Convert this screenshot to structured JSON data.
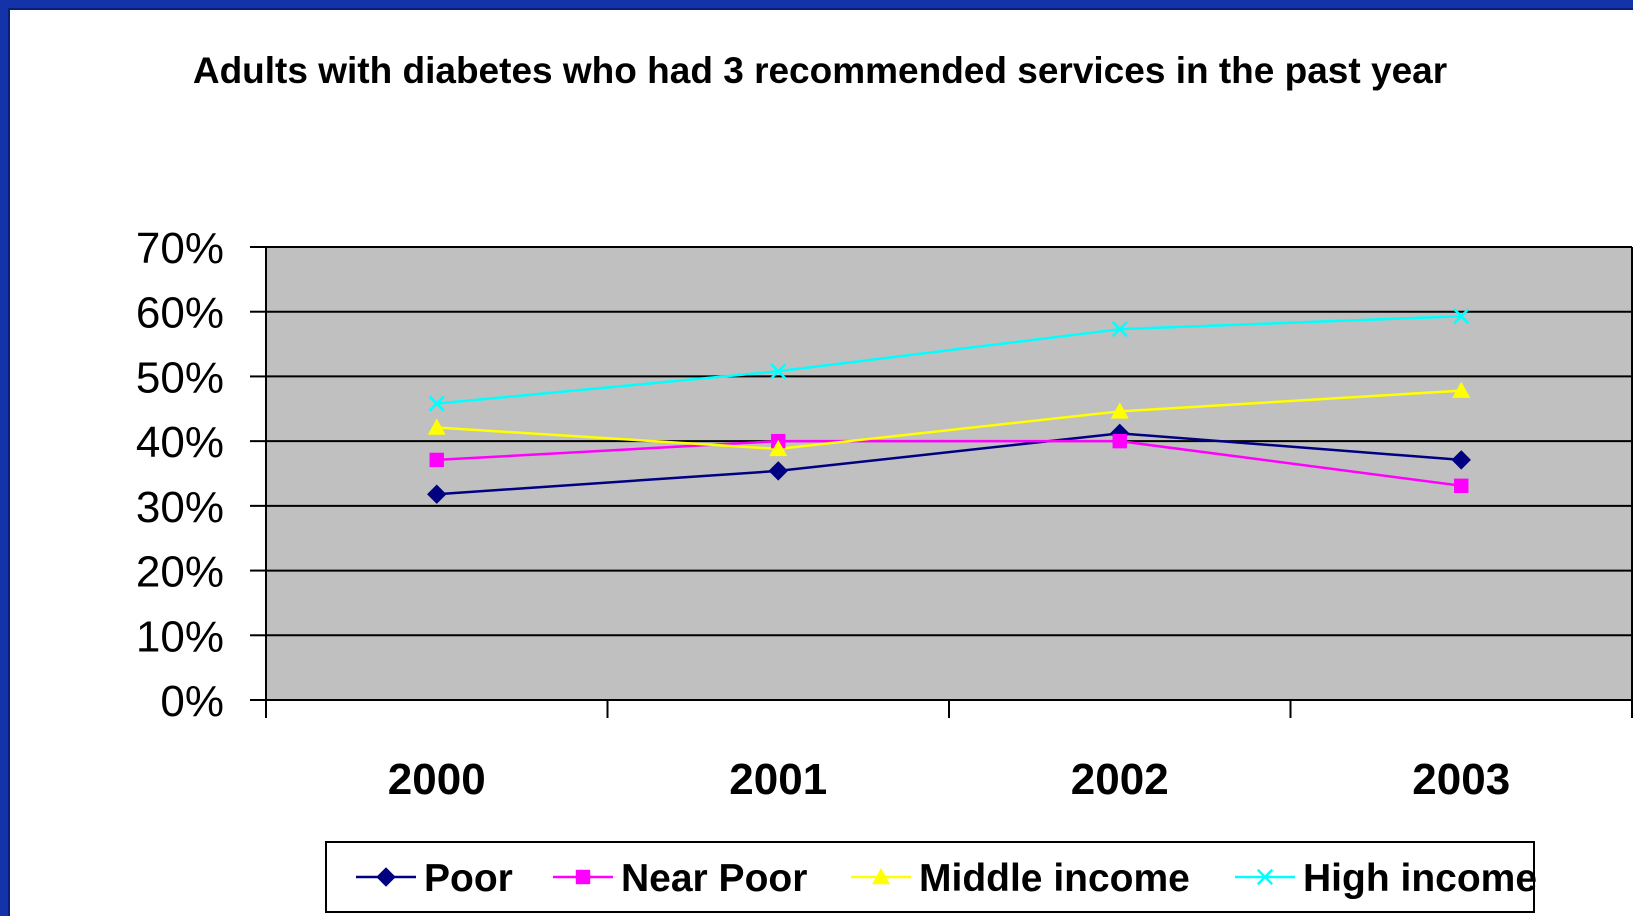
{
  "chart_data": {
    "type": "line",
    "title": "Adults with diabetes who had 3 recommended services in the past year",
    "categories": [
      "2000",
      "2001",
      "2002",
      "2003"
    ],
    "y_ticks": [
      "0%",
      "10%",
      "20%",
      "30%",
      "40%",
      "50%",
      "60%",
      "70%"
    ],
    "ylim": [
      0,
      70
    ],
    "grid": true,
    "legend_position": "bottom",
    "plot_background": "#c0c0c0",
    "series": [
      {
        "name": "Poor",
        "values": [
          31.8,
          35.4,
          41.2,
          37.1
        ],
        "color": "#000080",
        "marker": "diamond"
      },
      {
        "name": "Near Poor",
        "values": [
          37.1,
          40.0,
          40.0,
          33.1
        ],
        "color": "#ff00ff",
        "marker": "square"
      },
      {
        "name": "Middle income",
        "values": [
          42.1,
          38.8,
          44.6,
          47.8
        ],
        "color": "#ffff00",
        "marker": "triangle"
      },
      {
        "name": "High income",
        "values": [
          45.8,
          50.8,
          57.3,
          59.3
        ],
        "color": "#00ffff",
        "marker": "x"
      }
    ]
  }
}
